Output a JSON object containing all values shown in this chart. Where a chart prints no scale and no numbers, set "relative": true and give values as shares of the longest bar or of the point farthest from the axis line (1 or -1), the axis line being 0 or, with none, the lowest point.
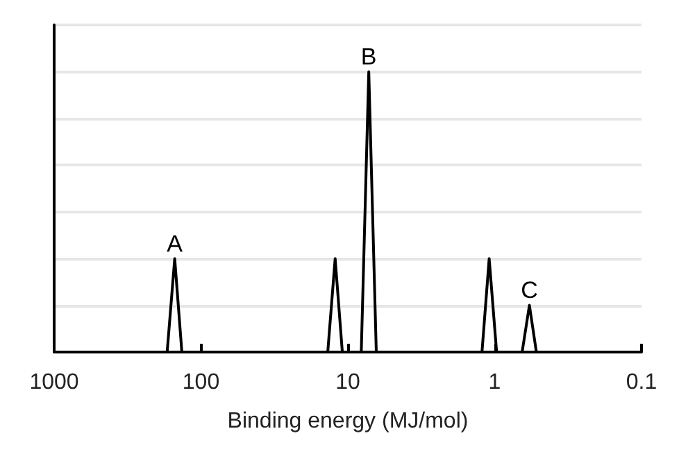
{
  "chart_data": {
    "type": "line",
    "xlabel": "Binding energy (MJ/mol)",
    "relative": true,
    "log": "x",
    "xlim": [
      1000,
      0.1
    ],
    "xticks": [
      1000,
      100,
      10,
      1,
      0.1
    ],
    "grid": "y",
    "marker": "none",
    "line_style": "solid",
    "series": [
      {
        "color": "#000000",
        "x": [
          1000,
          170,
          151,
          135,
          13.7,
          12.2,
          10.9,
          8.1,
          7.2,
          6.4,
          1.22,
          1.09,
          0.97,
          0.65,
          0.58,
          0.52,
          0.1
        ],
        "values": [
          0,
          0,
          0.333,
          0,
          0,
          0.333,
          0,
          0,
          1,
          0,
          0,
          0.333,
          0,
          0,
          0.167,
          0,
          0
        ]
      }
    ],
    "annotations": [
      {
        "text": "A",
        "x": 151,
        "y": 0.333
      },
      {
        "text": "B",
        "x": 7.2,
        "y": 1
      },
      {
        "text": "C",
        "x": 0.58,
        "y": 0.167
      }
    ]
  }
}
